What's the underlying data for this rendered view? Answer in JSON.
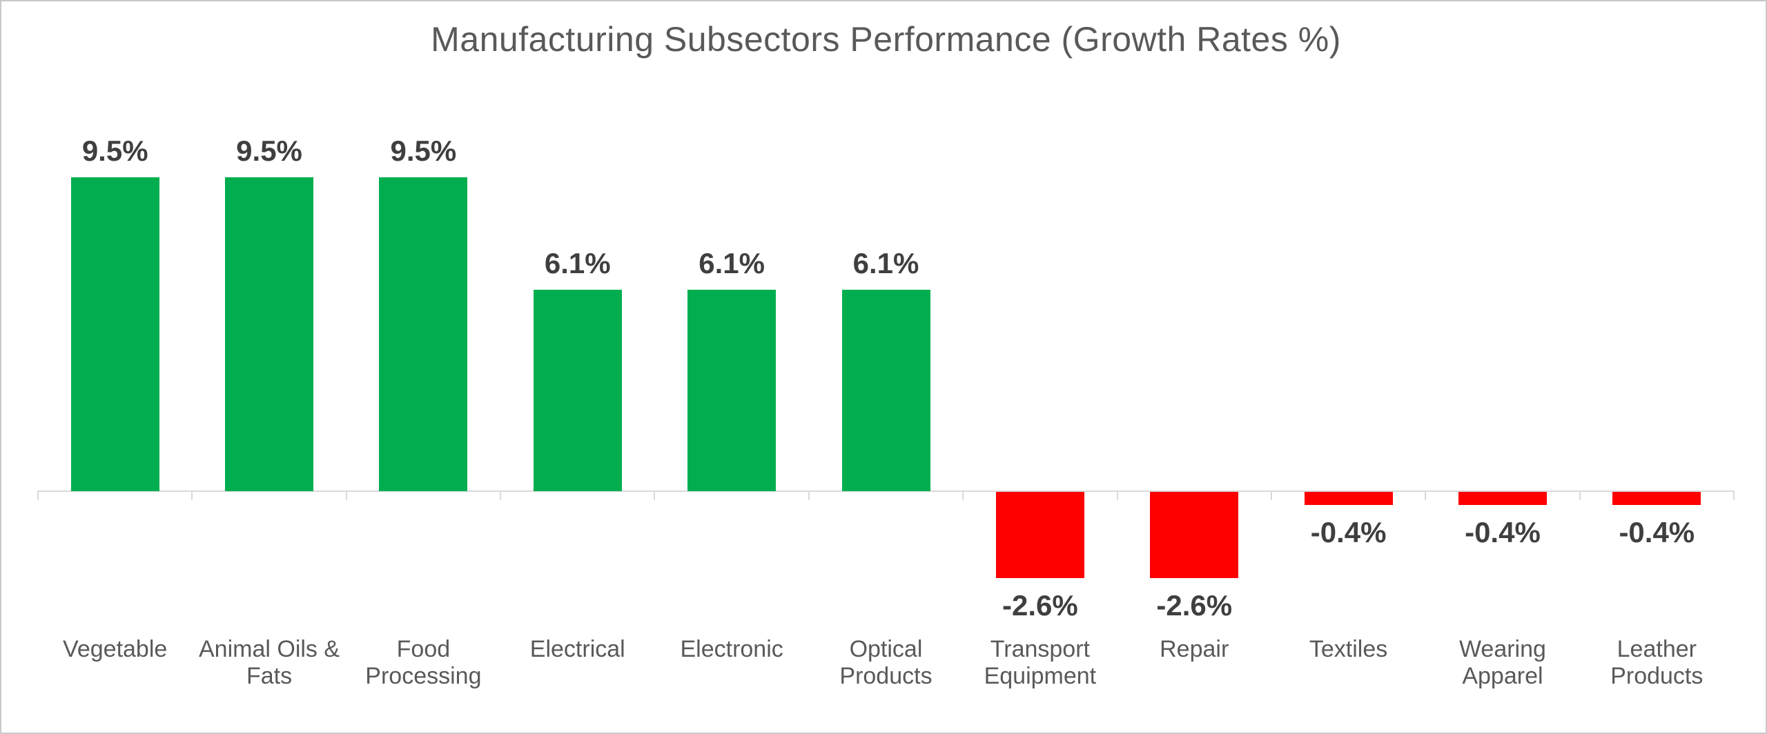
{
  "window": {
    "background_color": "#ffffff",
    "border_color": "#c9c9c9"
  },
  "chart_data": {
    "type": "bar",
    "title": "Manufacturing Subsectors Performance (Growth Rates %)",
    "categories": [
      "Vegetable",
      "Animal Oils & Fats",
      "Food Processing",
      "Electrical",
      "Electronic",
      "Optical Products",
      "Transport Equipment",
      "Repair",
      "Textiles",
      "Wearing Apparel",
      "Leather Products"
    ],
    "values": [
      9.5,
      9.5,
      9.5,
      6.1,
      6.1,
      6.1,
      -2.6,
      -2.6,
      -0.4,
      -0.4,
      -0.4
    ],
    "value_labels": [
      "9.5%",
      "9.5%",
      "9.5%",
      "6.1%",
      "6.1%",
      "6.1%",
      "-2.6%",
      "-2.6%",
      "-0.4%",
      "-0.4%",
      "-0.4%"
    ],
    "xlabel": "",
    "ylabel": "",
    "ylim": [
      -4,
      12
    ],
    "grid": false,
    "legend": "none",
    "y_axis_labels_visible": false,
    "colors": {
      "positive_bar": "#00ae50",
      "negative_bar": "#ff0000",
      "axis": "#d9d9d9",
      "title_text": "#595959",
      "category_text": "#595959",
      "value_text": "#3f3f3f"
    }
  }
}
